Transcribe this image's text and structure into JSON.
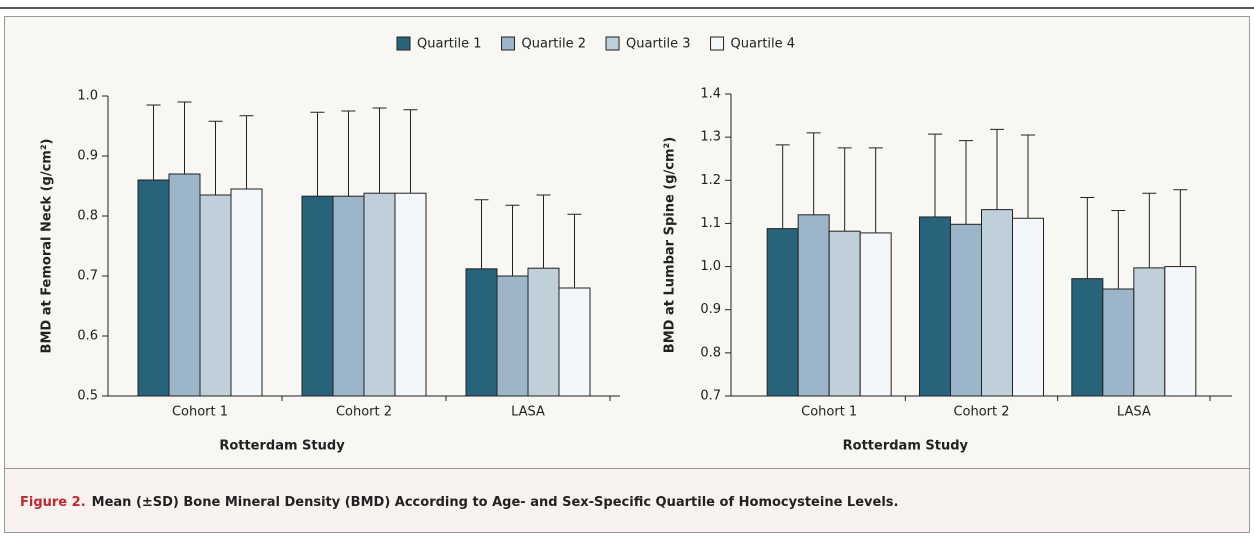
{
  "chart_data": [
    {
      "type": "bar",
      "ylabel": "BMD at Femoral Neck (g/cm²)",
      "xlabel": "Rotterdam Study",
      "categories": [
        "Cohort 1",
        "Cohort 2",
        "LASA"
      ],
      "series": [
        {
          "name": "Quartile 1",
          "color": "#27637a",
          "values": [
            0.86,
            0.833,
            0.712
          ],
          "errors": [
            0.125,
            0.14,
            0.115
          ]
        },
        {
          "name": "Quartile 2",
          "color": "#9cb5c8",
          "values": [
            0.87,
            0.833,
            0.7
          ],
          "errors": [
            0.12,
            0.142,
            0.118
          ]
        },
        {
          "name": "Quartile 3",
          "color": "#bfd0da",
          "values": [
            0.835,
            0.838,
            0.713
          ],
          "errors": [
            0.123,
            0.142,
            0.122
          ]
        },
        {
          "name": "Quartile 4",
          "color": "#f4f7f9",
          "values": [
            0.845,
            0.838,
            0.68
          ],
          "errors": [
            0.122,
            0.139,
            0.123
          ]
        }
      ],
      "ylim": [
        0.5,
        1.0
      ],
      "yticks": [
        0.5,
        0.6,
        0.7,
        0.8,
        0.9,
        {
          "value": 1,
          "label": "1.0"
        }
      ]
    },
    {
      "type": "bar",
      "ylabel": "BMD at Lumbar Spine (g/cm²)",
      "xlabel": "Rotterdam Study",
      "categories": [
        "Cohort 1",
        "Cohort 2",
        "LASA"
      ],
      "series": [
        {
          "color": "#27637a",
          "values": [
            1.088,
            1.115,
            0.972
          ],
          "errors": [
            0.194,
            0.192,
            0.188
          ]
        },
        {
          "color": "#9cb5c8",
          "values": [
            1.12,
            1.098,
            0.948
          ],
          "errors": [
            0.19,
            0.194,
            0.182
          ]
        },
        {
          "color": "#bfd0da",
          "values": [
            1.082,
            1.132,
            0.997
          ],
          "errors": [
            0.193,
            0.186,
            0.173
          ]
        },
        {
          "color": "#f4f7f9",
          "values": [
            1.078,
            1.112,
            1.0
          ],
          "errors": [
            0.197,
            0.193,
            0.178
          ]
        }
      ],
      "ylim": [
        0.7,
        1.4
      ],
      "yticks": [
        0.7,
        0.8,
        0.9,
        {
          "value": 1,
          "label": "1.0"
        },
        1.1,
        1.2,
        1.3,
        1.4
      ]
    }
  ],
  "caption": {
    "label": "Figure 2.",
    "text": "Mean (±SD) Bone Mineral Density (BMD) According to Age- and Sex-Specific Quartile of Homocysteine Levels."
  }
}
